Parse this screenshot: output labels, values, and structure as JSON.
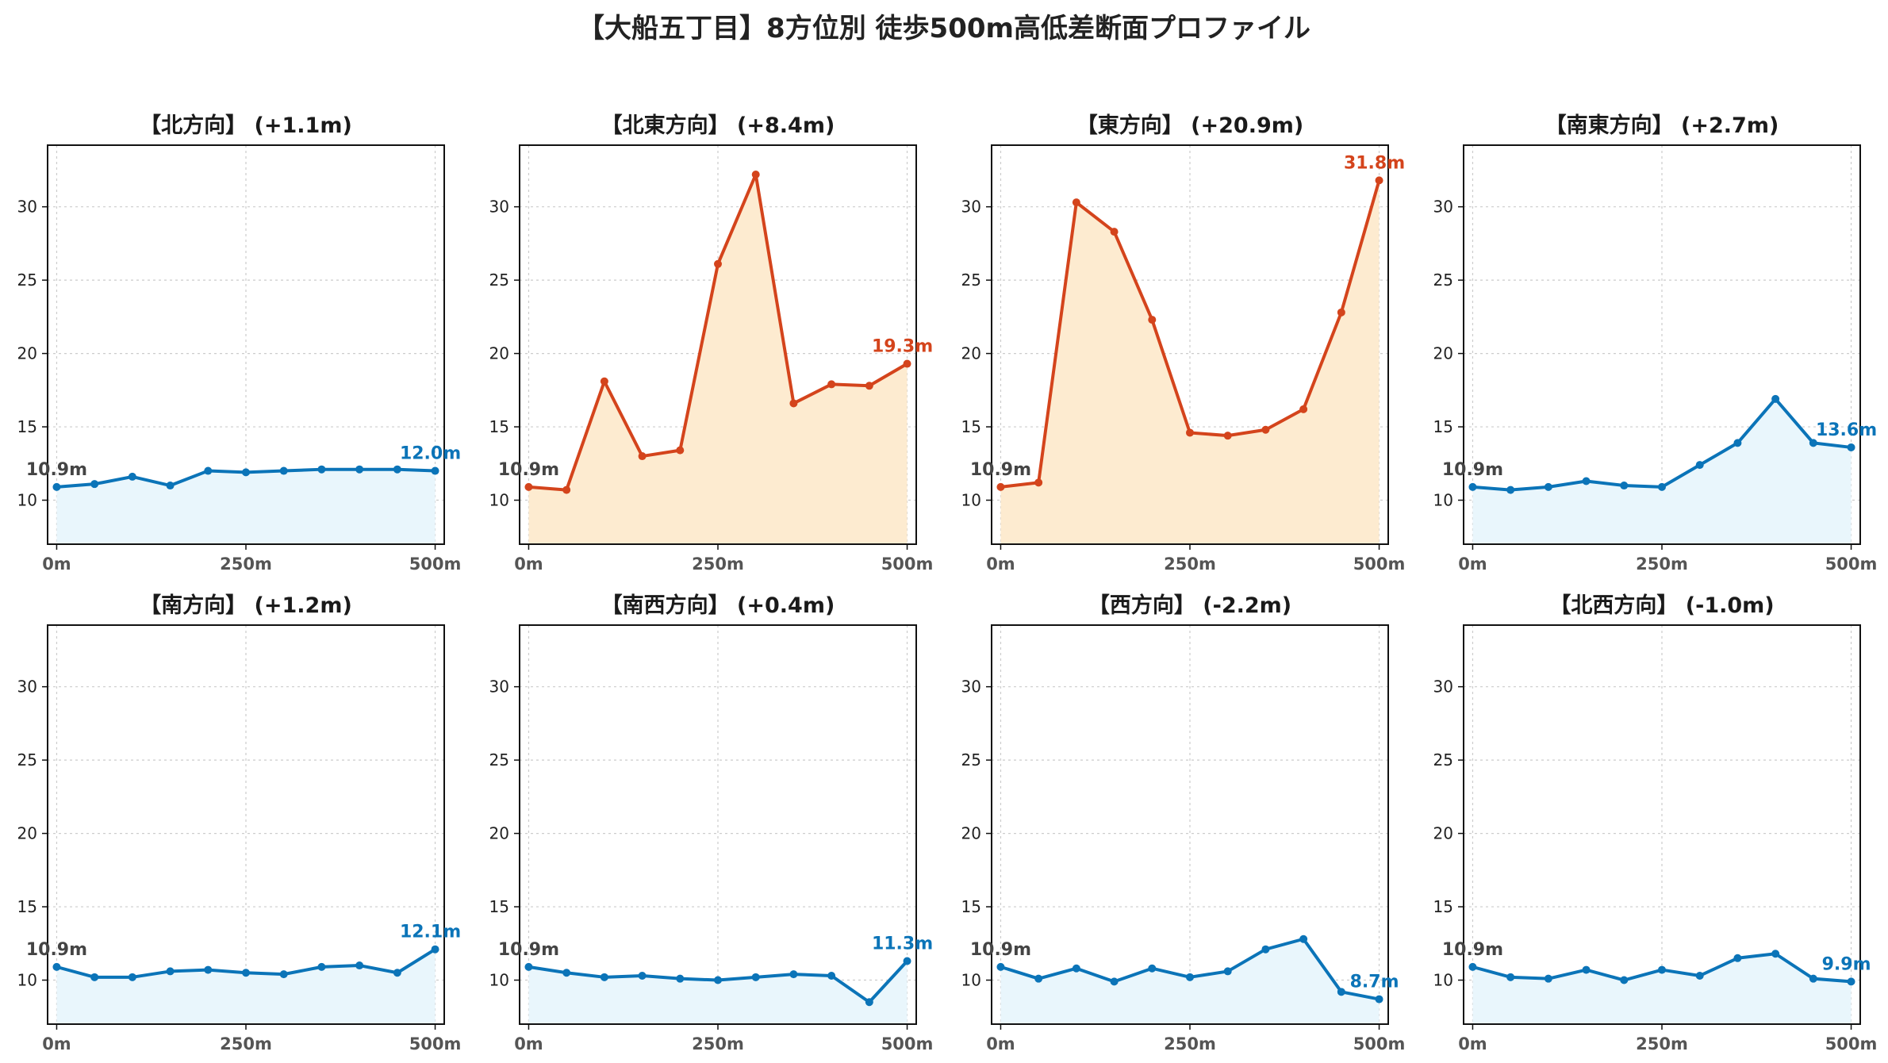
{
  "title": "【大船五丁目】8方位別 徒歩500m高低差断面プロファイル",
  "colors": {
    "up_line": "#d4441c",
    "up_fill": "#fdebd0",
    "flat_line": "#0b74b8",
    "flat_fill": "#e9f6fc",
    "start_label": "#444444",
    "grid": "#cccccc"
  },
  "chart_data": [
    {
      "type": "area",
      "title": "【北方向】 (+1.1m)",
      "theme": "flat",
      "x": [
        0,
        50,
        100,
        150,
        200,
        250,
        300,
        350,
        400,
        450,
        500
      ],
      "y": [
        10.9,
        11.1,
        11.6,
        11.0,
        12.0,
        11.9,
        12.0,
        12.1,
        12.1,
        12.1,
        12.0
      ],
      "x_ticks": [
        "0m",
        "250m",
        "500m"
      ],
      "y_ticks": [
        "10",
        "15",
        "20",
        "25",
        "30"
      ],
      "ylim": [
        7,
        34.2
      ],
      "xlim": [
        -12,
        512
      ],
      "grid": true,
      "start_label": "10.9m",
      "end_label": "12.0m"
    },
    {
      "type": "area",
      "title": "【北東方向】 (+8.4m)",
      "theme": "up",
      "x": [
        0,
        50,
        100,
        150,
        200,
        250,
        300,
        350,
        400,
        450,
        500
      ],
      "y": [
        10.9,
        10.7,
        18.1,
        13.0,
        13.4,
        26.1,
        32.2,
        16.6,
        17.9,
        17.8,
        19.3
      ],
      "x_ticks": [
        "0m",
        "250m",
        "500m"
      ],
      "y_ticks": [
        "10",
        "15",
        "20",
        "25",
        "30"
      ],
      "ylim": [
        7,
        34.2
      ],
      "xlim": [
        -12,
        512
      ],
      "grid": true,
      "start_label": "10.9m",
      "end_label": "19.3m"
    },
    {
      "type": "area",
      "title": "【東方向】 (+20.9m)",
      "theme": "up",
      "x": [
        0,
        50,
        100,
        150,
        200,
        250,
        300,
        350,
        400,
        450,
        500
      ],
      "y": [
        10.9,
        11.2,
        30.3,
        28.3,
        22.3,
        14.6,
        14.4,
        14.8,
        16.2,
        22.8,
        31.8
      ],
      "x_ticks": [
        "0m",
        "250m",
        "500m"
      ],
      "y_ticks": [
        "10",
        "15",
        "20",
        "25",
        "30"
      ],
      "ylim": [
        7,
        34.2
      ],
      "xlim": [
        -12,
        512
      ],
      "grid": true,
      "start_label": "10.9m",
      "end_label": "31.8m"
    },
    {
      "type": "area",
      "title": "【南東方向】 (+2.7m)",
      "theme": "flat",
      "x": [
        0,
        50,
        100,
        150,
        200,
        250,
        300,
        350,
        400,
        450,
        500
      ],
      "y": [
        10.9,
        10.7,
        10.9,
        11.3,
        11.0,
        10.9,
        12.4,
        13.9,
        16.9,
        13.9,
        13.6
      ],
      "x_ticks": [
        "0m",
        "250m",
        "500m"
      ],
      "y_ticks": [
        "10",
        "15",
        "20",
        "25",
        "30"
      ],
      "ylim": [
        7,
        34.2
      ],
      "xlim": [
        -12,
        512
      ],
      "grid": true,
      "start_label": "10.9m",
      "end_label": "13.6m"
    },
    {
      "type": "area",
      "title": "【南方向】 (+1.2m)",
      "theme": "flat",
      "x": [
        0,
        50,
        100,
        150,
        200,
        250,
        300,
        350,
        400,
        450,
        500
      ],
      "y": [
        10.9,
        10.2,
        10.2,
        10.6,
        10.7,
        10.5,
        10.4,
        10.9,
        11.0,
        10.5,
        12.1
      ],
      "x_ticks": [
        "0m",
        "250m",
        "500m"
      ],
      "y_ticks": [
        "10",
        "15",
        "20",
        "25",
        "30"
      ],
      "ylim": [
        7,
        34.2
      ],
      "xlim": [
        -12,
        512
      ],
      "grid": true,
      "start_label": "10.9m",
      "end_label": "12.1m"
    },
    {
      "type": "area",
      "title": "【南西方向】 (+0.4m)",
      "theme": "flat",
      "x": [
        0,
        50,
        100,
        150,
        200,
        250,
        300,
        350,
        400,
        450,
        500
      ],
      "y": [
        10.9,
        10.5,
        10.2,
        10.3,
        10.1,
        10.0,
        10.2,
        10.4,
        10.3,
        8.5,
        11.3
      ],
      "x_ticks": [
        "0m",
        "250m",
        "500m"
      ],
      "y_ticks": [
        "10",
        "15",
        "20",
        "25",
        "30"
      ],
      "ylim": [
        7,
        34.2
      ],
      "xlim": [
        -12,
        512
      ],
      "grid": true,
      "start_label": "10.9m",
      "end_label": "11.3m"
    },
    {
      "type": "area",
      "title": "【西方向】 (-2.2m)",
      "theme": "flat",
      "x": [
        0,
        50,
        100,
        150,
        200,
        250,
        300,
        350,
        400,
        450,
        500
      ],
      "y": [
        10.9,
        10.1,
        10.8,
        9.9,
        10.8,
        10.2,
        10.6,
        12.1,
        12.8,
        9.2,
        8.7
      ],
      "x_ticks": [
        "0m",
        "250m",
        "500m"
      ],
      "y_ticks": [
        "10",
        "15",
        "20",
        "25",
        "30"
      ],
      "ylim": [
        7,
        34.2
      ],
      "xlim": [
        -12,
        512
      ],
      "grid": true,
      "start_label": "10.9m",
      "end_label": "8.7m"
    },
    {
      "type": "area",
      "title": "【北西方向】 (-1.0m)",
      "theme": "flat",
      "x": [
        0,
        50,
        100,
        150,
        200,
        250,
        300,
        350,
        400,
        450,
        500
      ],
      "y": [
        10.9,
        10.2,
        10.1,
        10.7,
        10.0,
        10.7,
        10.3,
        11.5,
        11.8,
        10.1,
        9.9
      ],
      "x_ticks": [
        "0m",
        "250m",
        "500m"
      ],
      "y_ticks": [
        "10",
        "15",
        "20",
        "25",
        "30"
      ],
      "ylim": [
        7,
        34.2
      ],
      "xlim": [
        -12,
        512
      ],
      "grid": true,
      "start_label": "10.9m",
      "end_label": "9.9m"
    }
  ]
}
